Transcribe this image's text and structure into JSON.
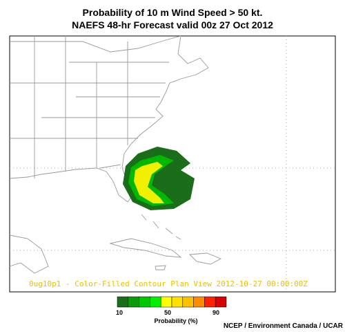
{
  "header": {
    "title_lines": [
      "Probability of 10 m Wind Speed > 50 kt.",
      "NAEFS 48-hr Forecast valid 00z 27 Oct 2012"
    ]
  },
  "map": {
    "plot_label": "0ug10p1 - Color-Filled Contour Plan View 2012-10-27 00:00:00Z"
  },
  "legend": {
    "colors": [
      "#1a6e1a",
      "#0a9a0a",
      "#00c800",
      "#00f000",
      "#ffff00",
      "#ffe000",
      "#ffc000",
      "#ff8c00",
      "#ff2000",
      "#d80000"
    ],
    "labels": [
      10,
      50,
      90
    ],
    "title": "Probability (%)"
  },
  "credit": "NCEP / Environment Canada / UCAR"
}
